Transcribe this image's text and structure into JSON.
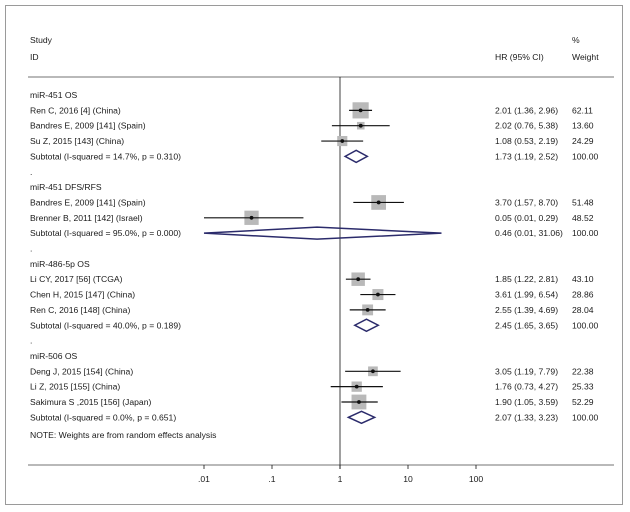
{
  "chart_data": {
    "type": "forest",
    "header": {
      "study_line1": "Study",
      "study_line2": "ID",
      "effect_label": "HR (95% CI)",
      "weight_line1": "%",
      "weight_line2": "Weight"
    },
    "x_axis": {
      "scale": "log",
      "xlim": [
        0.005,
        150
      ],
      "ticks": [
        0.01,
        0.1,
        1,
        10,
        100
      ],
      "tick_labels": [
        ".01",
        ".1",
        "1",
        "10",
        "100"
      ],
      "reference_line": 1
    },
    "groups": [
      {
        "title": "miR-451 OS",
        "studies": [
          {
            "label": "Ren C, 2016 [4] (China)",
            "hr": 2.01,
            "lo": 1.36,
            "hi": 2.96,
            "ci_text": "2.01 (1.36, 2.96)",
            "weight": 62.11,
            "weight_text": "62.11"
          },
          {
            "label": "Bandres E, 2009 [141] (Spain)",
            "hr": 2.02,
            "lo": 0.76,
            "hi": 5.38,
            "ci_text": "2.02 (0.76, 5.38)",
            "weight": 13.6,
            "weight_text": "13.60"
          },
          {
            "label": "Su Z, 2015 [143] (China)",
            "hr": 1.08,
            "lo": 0.53,
            "hi": 2.19,
            "ci_text": "1.08 (0.53, 2.19)",
            "weight": 24.29,
            "weight_text": "24.29"
          }
        ],
        "subtotal": {
          "label": "Subtotal  (I-squared = 14.7%, p = 0.310)",
          "hr": 1.73,
          "lo": 1.19,
          "hi": 2.52,
          "ci_text": "1.73 (1.19, 2.52)",
          "weight_text": "100.00"
        }
      },
      {
        "title": "miR-451 DFS/RFS",
        "studies": [
          {
            "label": "Bandres E, 2009 [141] (Spain)",
            "hr": 3.7,
            "lo": 1.57,
            "hi": 8.7,
            "ci_text": "3.70 (1.57, 8.70)",
            "weight": 51.48,
            "weight_text": "51.48"
          },
          {
            "label": "Brenner B, 2011 [142] (Israel)",
            "hr": 0.05,
            "lo": 0.01,
            "hi": 0.29,
            "ci_text": "0.05 (0.01, 0.29)",
            "weight": 48.52,
            "weight_text": "48.52"
          }
        ],
        "subtotal": {
          "label": "Subtotal  (I-squared = 95.0%, p = 0.000)",
          "hr": 0.46,
          "lo": 0.01,
          "hi": 31.06,
          "ci_text": "0.46 (0.01, 31.06)",
          "weight_text": "100.00"
        }
      },
      {
        "title": "miR-486-5p OS",
        "studies": [
          {
            "label": "Li CY, 2017 [56] (TCGA)",
            "hr": 1.85,
            "lo": 1.22,
            "hi": 2.81,
            "ci_text": "1.85 (1.22, 2.81)",
            "weight": 43.1,
            "weight_text": "43.10"
          },
          {
            "label": "Chen H, 2015 [147] (China)",
            "hr": 3.61,
            "lo": 1.99,
            "hi": 6.54,
            "ci_text": "3.61 (1.99, 6.54)",
            "weight": 28.86,
            "weight_text": "28.86"
          },
          {
            "label": "Ren C, 2016 [148] (China)",
            "hr": 2.55,
            "lo": 1.39,
            "hi": 4.69,
            "ci_text": "2.55 (1.39, 4.69)",
            "weight": 28.04,
            "weight_text": "28.04"
          }
        ],
        "subtotal": {
          "label": "Subtotal  (I-squared = 40.0%, p = 0.189)",
          "hr": 2.45,
          "lo": 1.65,
          "hi": 3.65,
          "ci_text": "2.45 (1.65, 3.65)",
          "weight_text": "100.00"
        }
      },
      {
        "title": "miR-506 OS",
        "studies": [
          {
            "label": "Deng J, 2015 [154] (China)",
            "hr": 3.05,
            "lo": 1.19,
            "hi": 7.79,
            "ci_text": "3.05 (1.19, 7.79)",
            "weight": 22.38,
            "weight_text": "22.38"
          },
          {
            "label": "Li Z, 2015 [155] (China)",
            "hr": 1.76,
            "lo": 0.73,
            "hi": 4.27,
            "ci_text": "1.76 (0.73, 4.27)",
            "weight": 25.33,
            "weight_text": "25.33"
          },
          {
            "label": "Sakimura S ,2015 [156] (Japan)",
            "hr": 1.9,
            "lo": 1.05,
            "hi": 3.59,
            "ci_text": "1.90 (1.05, 3.59)",
            "weight": 52.29,
            "weight_text": "52.29"
          }
        ],
        "subtotal": {
          "label": "Subtotal  (I-squared = 0.0%, p = 0.651)",
          "hr": 2.07,
          "lo": 1.33,
          "hi": 3.23,
          "ci_text": "2.07 (1.33, 3.23)",
          "weight_text": "100.00"
        }
      }
    ],
    "group_separator": ".",
    "note": "NOTE: Weights are from random effects analysis",
    "colors": {
      "square": "#b9b9b9",
      "diamond": "#2b2b6b",
      "line": "#111111",
      "rule": "#444444"
    }
  }
}
